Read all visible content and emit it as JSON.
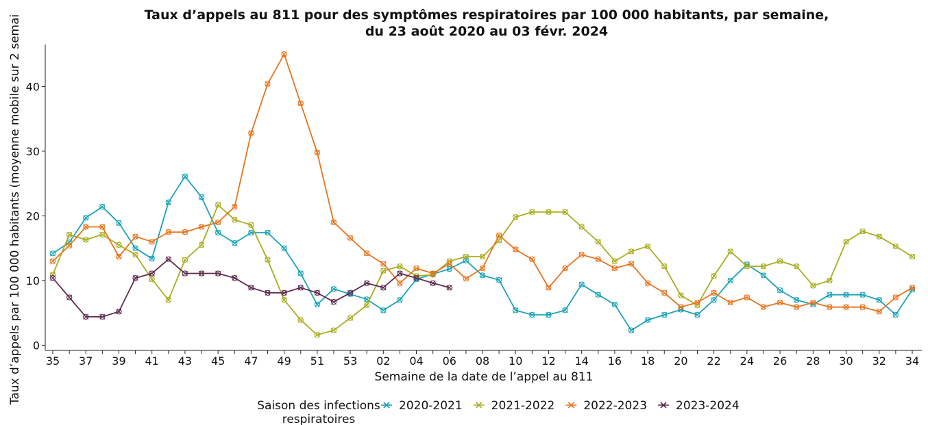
{
  "chart_data": {
    "type": "line",
    "title": [
      "Taux d’appels au 811 pour des symptômes respiratoires par 100 000 habitants, par semaine,",
      "du 23 août 2020 au 03 févr. 2024"
    ],
    "xlabel": "Semaine de la date de l’appel au 811",
    "ylabel": "Taux d’appels par 100 000 habitants (moyenne mobile sur 2 semai",
    "legend_title": [
      "Saison des infections",
      "respiratoires"
    ],
    "legend": "bottom",
    "categories": [
      "35",
      null,
      "37",
      null,
      "39",
      null,
      "41",
      null,
      "43",
      null,
      "45",
      null,
      "47",
      null,
      "49",
      null,
      "51",
      null,
      "53",
      null,
      "02",
      null,
      "04",
      null,
      "06",
      null,
      "08",
      null,
      "10",
      null,
      "12",
      null,
      "14",
      null,
      "16",
      null,
      "18",
      null,
      "20",
      null,
      "22",
      null,
      "24",
      null,
      "26",
      null,
      "28",
      null,
      "30",
      null,
      "32",
      null,
      "34"
    ],
    "ylim": [
      -0.8,
      46.5
    ],
    "yticks": [
      0,
      10,
      20,
      30,
      40
    ],
    "series": [
      {
        "name": "2020-2021",
        "color": "#1aa3b5",
        "values": [
          14.2,
          15.9,
          19.7,
          21.4,
          18.9,
          15,
          13.4,
          22.1,
          26.1,
          22.9,
          17.4,
          15.8,
          17.4,
          17.4,
          15,
          11.1,
          6.3,
          8.7,
          7.9,
          7.1,
          5.4,
          7,
          10.2,
          11,
          11.8,
          13.1,
          10.8,
          10.1,
          5.4,
          4.7,
          4.7,
          5.4,
          9.4,
          7.8,
          6.3,
          2.3,
          3.9,
          4.7,
          5.5,
          4.7,
          7,
          10,
          12.5,
          10.8,
          8.5,
          7,
          6.3,
          7.8,
          7.8,
          7.8,
          7,
          4.7,
          8.6
        ]
      },
      {
        "name": "2021-2022",
        "color": "#a8ad1f",
        "values": [
          10.9,
          17.1,
          16.3,
          17.1,
          15.5,
          14,
          10.2,
          7,
          13.2,
          15.5,
          21.7,
          19.4,
          18.6,
          13.2,
          7,
          3.9,
          1.6,
          2.3,
          4.2,
          6.2,
          11.5,
          12.2,
          10.7,
          10.9,
          13,
          13.7,
          13.7,
          16.2,
          19.8,
          20.6,
          20.6,
          20.6,
          18.3,
          16,
          13,
          14.5,
          15.3,
          12.2,
          7.7,
          6.2,
          10.7,
          14.5,
          12.2,
          12.2,
          13,
          12.2,
          9.2,
          10,
          16,
          17.6,
          16.8,
          15.3,
          13.7
        ]
      },
      {
        "name": "2022-2023",
        "color": "#e8731c",
        "values": [
          13,
          15.4,
          18.3,
          18.3,
          13.7,
          16.8,
          16,
          17.5,
          17.5,
          18.3,
          19,
          21.4,
          32.8,
          40.4,
          45,
          37.4,
          29.8,
          19,
          16.6,
          14.2,
          12.6,
          9.6,
          11.9,
          11.1,
          12.6,
          10.3,
          11.9,
          17,
          14.8,
          13.3,
          8.9,
          11.9,
          14,
          13.3,
          11.9,
          12.6,
          9.6,
          8.1,
          5.9,
          6.6,
          8.1,
          6.6,
          7.4,
          5.9,
          6.6,
          5.9,
          6.6,
          5.9,
          5.9,
          5.9,
          5.2,
          7.4,
          8.9
        ]
      },
      {
        "name": "2023-2024",
        "color": "#5e2a4e",
        "values": [
          10.4,
          7.4,
          4.4,
          4.4,
          5.2,
          10.4,
          11.1,
          13.3,
          11.1,
          11.1,
          11.1,
          10.4,
          8.9,
          8.1,
          8.1,
          8.9,
          8.1,
          6.7,
          8.1,
          9.6,
          8.9,
          11.1,
          10.4,
          9.6,
          8.9,
          null,
          null,
          null,
          null,
          null,
          null,
          null,
          null,
          null,
          null,
          null,
          null,
          null,
          null,
          null,
          null,
          null,
          null,
          null,
          null,
          null,
          null,
          null,
          null,
          null,
          null,
          null,
          null
        ]
      }
    ]
  }
}
